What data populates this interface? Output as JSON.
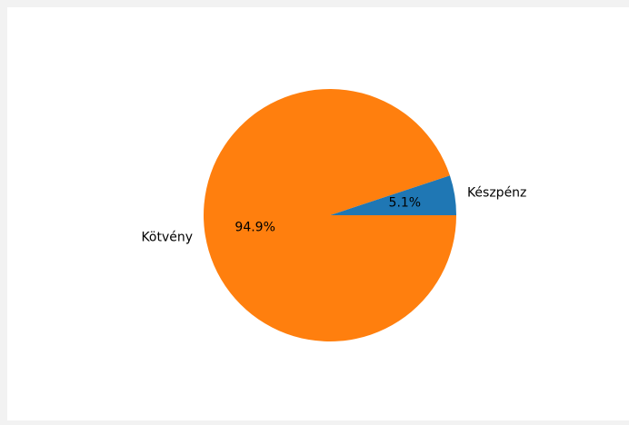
{
  "chart_data": {
    "type": "pie",
    "title": "",
    "slices": [
      {
        "label": "Készpénz",
        "value": 5.1,
        "pct_label": "5.1%",
        "color": "#1f77b4"
      },
      {
        "label": "Kötvény",
        "value": 94.9,
        "pct_label": "94.9%",
        "color": "#ff7f0e"
      }
    ],
    "start_angle_deg": 0,
    "direction": "counterclockwise",
    "legend": "none"
  }
}
